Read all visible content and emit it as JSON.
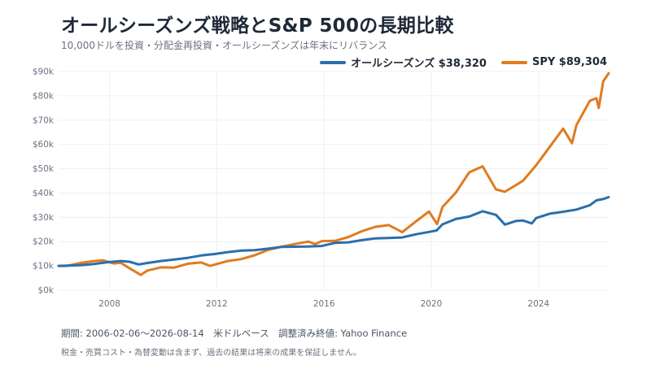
{
  "title": "オールシーズンズ戦略とS&P 500の長期比較",
  "subtitle": "10,000ドルを投資・分配金再投資・オールシーズンズは年末にリバランス",
  "legend": {
    "series1_label": "オールシーズンズ $38,320",
    "series2_label": "SPY $89,304"
  },
  "footer": {
    "line1": "期間: 2006-02-06〜2026-08-14　米ドルベース　調整済み終値: Yahoo Finance",
    "line2": "税金・売買コスト・為替変動は含まず、過去の結果は将来の成果を保証しません。"
  },
  "colors": {
    "all_seasons": "#2a6fad",
    "spy": "#e07b1f",
    "grid": "#eef0f3",
    "text": "#1f2937"
  },
  "chart_data": {
    "type": "line",
    "title": "オールシーズンズ戦略とS&P 500の長期比較",
    "xlabel": "",
    "ylabel": "",
    "xlim": [
      "2006-02-06",
      "2026-08-14"
    ],
    "ylim": [
      0,
      90000
    ],
    "y_ticks": [
      0,
      10000,
      20000,
      30000,
      40000,
      50000,
      60000,
      70000,
      80000,
      90000
    ],
    "y_tick_labels": [
      "$0k",
      "$10k",
      "$20k",
      "$30k",
      "$40k",
      "$50k",
      "$60k",
      "$70k",
      "$80k",
      "$90k"
    ],
    "x_ticks": [
      "2008",
      "2012",
      "2016",
      "2020",
      "2024"
    ],
    "grid": true,
    "legend_position": "top-right",
    "series": [
      {
        "name": "オールシーズンズ",
        "final_label": "$38,320",
        "color": "#2a6fad",
        "x": [
          "2006-02-06",
          "2006-06-01",
          "2006-12-01",
          "2007-06-01",
          "2007-12-01",
          "2008-06-01",
          "2008-10-01",
          "2009-02-01",
          "2009-06-01",
          "2009-12-01",
          "2010-06-01",
          "2010-12-01",
          "2011-06-01",
          "2011-12-01",
          "2012-06-01",
          "2012-12-01",
          "2013-06-01",
          "2013-12-01",
          "2014-06-01",
          "2014-12-01",
          "2015-06-01",
          "2015-12-01",
          "2016-06-01",
          "2016-12-01",
          "2017-06-01",
          "2017-12-01",
          "2018-06-01",
          "2018-12-01",
          "2019-06-01",
          "2019-12-01",
          "2020-03-15",
          "2020-06-01",
          "2020-12-01",
          "2021-06-01",
          "2021-12-01",
          "2022-06-01",
          "2022-10-01",
          "2023-03-01",
          "2023-06-01",
          "2023-10-01",
          "2023-12-01",
          "2024-06-01",
          "2024-12-01",
          "2025-06-01",
          "2025-12-01",
          "2026-03-01",
          "2026-06-01",
          "2026-08-14"
        ],
        "values": [
          10000,
          10100,
          10300,
          10800,
          11500,
          12000,
          11700,
          10600,
          11200,
          12000,
          12600,
          13300,
          14300,
          14900,
          15700,
          16300,
          16500,
          17100,
          17800,
          17900,
          18000,
          18200,
          19500,
          19700,
          20600,
          21300,
          21500,
          21700,
          23000,
          24000,
          24600,
          27100,
          29300,
          30300,
          32500,
          31000,
          27000,
          28500,
          28700,
          27500,
          29700,
          31500,
          32300,
          33200,
          35000,
          37000,
          37500,
          38320
        ]
      },
      {
        "name": "SPY",
        "final_label": "$89,304",
        "color": "#e07b1f",
        "x": [
          "2006-02-06",
          "2006-06-01",
          "2006-12-01",
          "2007-06-01",
          "2007-10-01",
          "2008-03-01",
          "2008-06-01",
          "2008-10-01",
          "2009-03-01",
          "2009-06-01",
          "2009-12-01",
          "2010-06-01",
          "2010-12-01",
          "2011-06-01",
          "2011-10-01",
          "2012-06-01",
          "2012-12-01",
          "2013-06-01",
          "2013-12-01",
          "2014-06-01",
          "2014-12-01",
          "2015-06-01",
          "2015-09-01",
          "2015-12-01",
          "2016-06-01",
          "2016-12-01",
          "2017-06-01",
          "2017-12-01",
          "2018-06-01",
          "2018-12-01",
          "2019-06-01",
          "2019-12-01",
          "2020-03-20",
          "2020-06-01",
          "2020-12-01",
          "2021-06-01",
          "2021-12-01",
          "2022-06-01",
          "2022-10-01",
          "2023-06-01",
          "2023-12-01",
          "2024-06-01",
          "2024-12-01",
          "2025-04-01",
          "2025-06-01",
          "2025-12-01",
          "2026-03-01",
          "2026-04-01",
          "2026-06-01",
          "2026-08-14"
        ],
        "values": [
          10000,
          10000,
          11200,
          12000,
          12300,
          11000,
          11300,
          9000,
          6300,
          8100,
          9400,
          9300,
          10900,
          11400,
          10000,
          12000,
          12800,
          14400,
          16600,
          17900,
          19000,
          20000,
          19000,
          20200,
          20300,
          21900,
          24300,
          26100,
          26800,
          23900,
          28200,
          32400,
          27200,
          34200,
          40200,
          48500,
          51000,
          41500,
          40500,
          45000,
          51500,
          59000,
          66500,
          60500,
          68000,
          78000,
          79000,
          75000,
          86000,
          89304
        ]
      }
    ]
  }
}
